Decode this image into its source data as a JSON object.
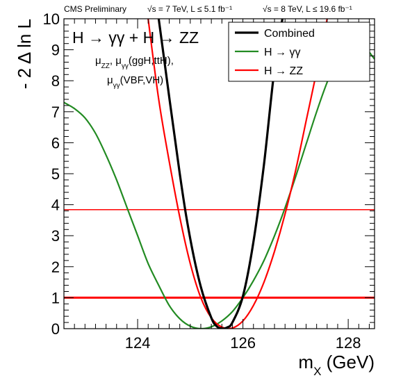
{
  "header": {
    "experiment": "CMS Preliminary",
    "lumi_7tev": "√s = 7 TeV, L ≤ 5.1 fb⁻¹",
    "lumi_8tev": "√s = 8 TeV, L ≤ 19.6 fb⁻¹"
  },
  "annotations": {
    "channels": "H → γγ + H → ZZ",
    "mu_line1": "μ_ZZ, μ_γγ(ggH,ttH),",
    "mu_line2": "μ_γγ(VBF,VH)"
  },
  "chart_data": {
    "type": "line",
    "title": "",
    "xlabel": "m_X (GeV)",
    "ylabel": "- 2 Δ ln L",
    "xlim": [
      122.6,
      128.5
    ],
    "ylim": [
      0,
      10
    ],
    "x_ticks": [
      124,
      126,
      128
    ],
    "y_ticks": [
      0,
      1,
      2,
      3,
      4,
      5,
      6,
      7,
      8,
      9,
      10
    ],
    "grid": false,
    "legend_position": "top-right",
    "colors": {
      "combined": "#000000",
      "gg": "#228b22",
      "zz": "#ff0000",
      "ref": "#ff0000"
    },
    "reference_lines": [
      {
        "y": 1,
        "label": ""
      },
      {
        "y": 3.84,
        "label": ""
      }
    ],
    "series": [
      {
        "name": "Combined",
        "color": "#000000",
        "x": [
          124.4,
          124.8,
          125.0,
          125.2,
          125.4,
          125.5,
          125.6,
          125.7,
          125.8,
          126.0,
          126.2,
          126.4,
          126.6,
          126.75
        ],
        "y": [
          10.0,
          5.0,
          2.9,
          1.35,
          0.35,
          0.08,
          0.0,
          0.04,
          0.2,
          1.05,
          2.8,
          5.3,
          8.4,
          10.0
        ]
      },
      {
        "name": "H → γγ",
        "color": "#228b22",
        "x": [
          122.6,
          122.8,
          123.0,
          123.2,
          123.4,
          123.6,
          123.8,
          124.0,
          124.2,
          124.4,
          124.6,
          124.8,
          125.0,
          125.2,
          125.4,
          125.6,
          125.8,
          126.0,
          126.2,
          126.4,
          126.6,
          126.8,
          127.0,
          127.2,
          127.4,
          127.6,
          127.8,
          128.0,
          128.2,
          128.5
        ],
        "y": [
          7.3,
          7.1,
          6.8,
          6.3,
          5.6,
          4.8,
          3.9,
          3.0,
          2.1,
          1.4,
          0.75,
          0.32,
          0.08,
          0.0,
          0.06,
          0.25,
          0.55,
          1.0,
          1.55,
          2.2,
          3.0,
          3.9,
          4.9,
          5.95,
          7.0,
          7.95,
          8.7,
          9.2,
          9.3,
          8.7
        ]
      },
      {
        "name": "H → ZZ",
        "color": "#ff0000",
        "x": [
          124.2,
          124.4,
          124.6,
          124.8,
          125.0,
          125.2,
          125.4,
          125.6,
          125.8,
          126.0,
          126.2,
          126.4,
          126.6,
          126.8,
          127.0,
          127.2,
          127.4,
          127.6
        ],
        "y": [
          10.0,
          7.4,
          5.4,
          3.6,
          2.1,
          1.0,
          0.35,
          0.05,
          0.02,
          0.25,
          0.75,
          1.5,
          2.5,
          3.7,
          5.1,
          6.7,
          8.3,
          10.0
        ]
      }
    ]
  }
}
